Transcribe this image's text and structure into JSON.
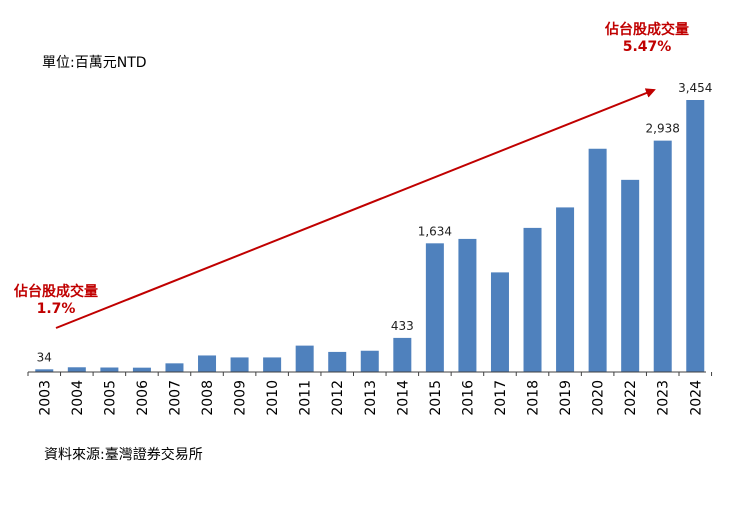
{
  "unit_label": "單位:百萬元NTD",
  "source_label": "資料來源:臺灣證券交易所",
  "colors": {
    "bar": "#4f81bd",
    "arrow": "#c00000",
    "axis": "#404040"
  },
  "annotations": {
    "start": {
      "label": "佔台股成交量",
      "value": "1.7%"
    },
    "end": {
      "label": "佔台股成交量",
      "value": "5.47%"
    }
  },
  "chart_data": {
    "type": "bar",
    "categories": [
      "2003",
      "2004",
      "2005",
      "2006",
      "2007",
      "2008",
      "2009",
      "2010",
      "2011",
      "2012",
      "2013",
      "2014",
      "2015",
      "2016",
      "2017",
      "2018",
      "2019",
      "2020",
      "2022",
      "2023",
      "2024"
    ],
    "values": [
      34,
      60,
      57,
      55,
      110,
      210,
      185,
      185,
      335,
      255,
      270,
      433,
      1634,
      1690,
      1265,
      1830,
      2090,
      2835,
      2440,
      2938,
      3454
    ],
    "data_labels": {
      "2003": "34",
      "2014": "433",
      "2015": "1,634",
      "2023": "2,938",
      "2024": "3,454"
    },
    "ylim": [
      0,
      3454
    ],
    "title": "",
    "xlabel": "",
    "ylabel": ""
  }
}
